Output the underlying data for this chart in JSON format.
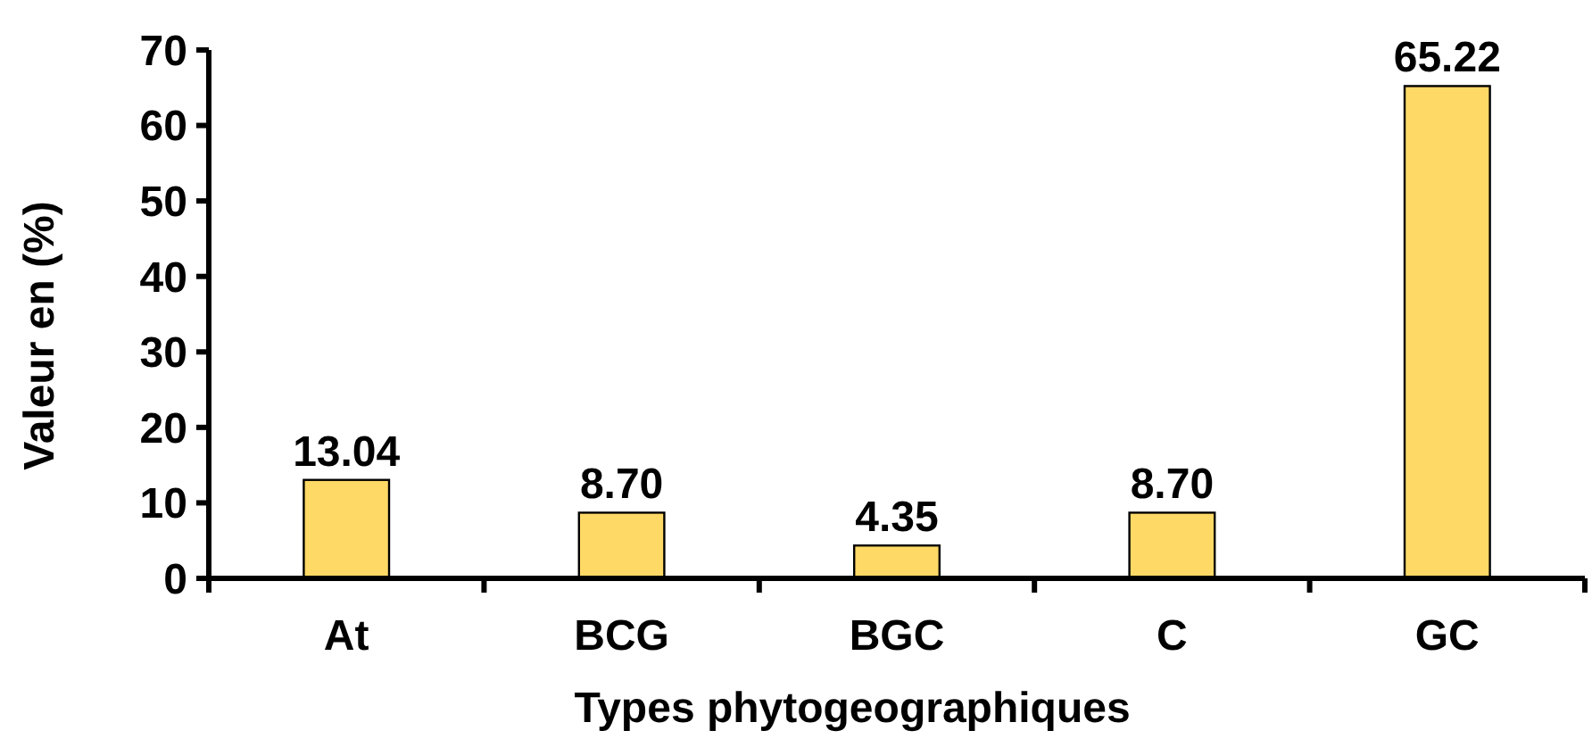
{
  "chart_data": {
    "type": "bar",
    "xlabel": "Types phytogeographiques",
    "ylabel": "Valeur en (%)",
    "categories": [
      "At",
      "BCG",
      "BGC",
      "C",
      "GC"
    ],
    "values": [
      13.04,
      8.7,
      4.35,
      8.7,
      65.22
    ],
    "value_labels": [
      "13.04",
      "8.70",
      "4.35",
      "8.70",
      "65.22"
    ],
    "color": "#ffd966",
    "ylim": [
      0,
      70
    ],
    "yticks": [
      0,
      10,
      20,
      30,
      40,
      50,
      60,
      70
    ],
    "grid": false
  }
}
